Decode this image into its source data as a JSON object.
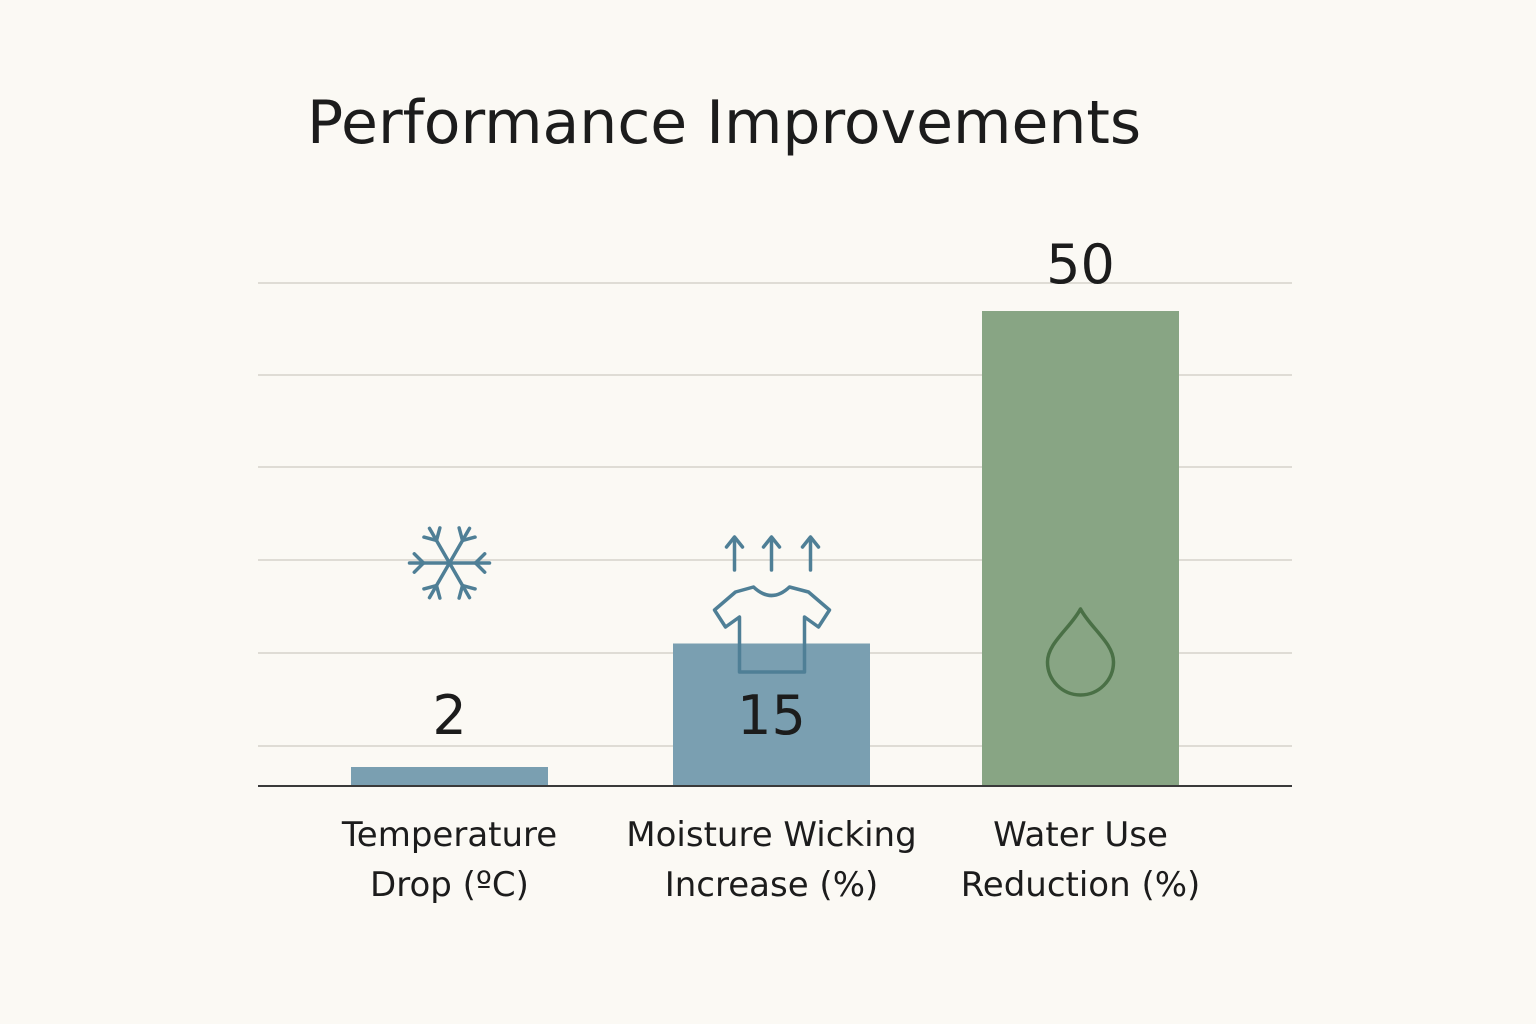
{
  "colors": {
    "background": "#fbf9f4",
    "blue_bar": "#7a9fb1",
    "green_bar": "#88a584",
    "blue_icon": "#4f7f96",
    "green_icon": "#4a7046",
    "text": "#1c1c1c"
  },
  "chart_data": {
    "type": "bar",
    "title": "Performance Improvements",
    "xlabel": "",
    "ylabel": "",
    "ylim": [
      0,
      50
    ],
    "grid": true,
    "categories": [
      [
        "Temperature",
        "Drop (ºC)"
      ],
      [
        "Moisture Wicking",
        "Increase (%)"
      ],
      [
        "Water Use",
        "Reduction (%)"
      ]
    ],
    "values": [
      2,
      15,
      50
    ],
    "value_labels": [
      "2",
      "15",
      "50"
    ],
    "bar_colors": [
      "#7a9fb1",
      "#7a9fb1",
      "#88a584"
    ],
    "icons": [
      "snowflake-icon",
      "shirt-wicking-icon",
      "water-drop-icon"
    ]
  }
}
